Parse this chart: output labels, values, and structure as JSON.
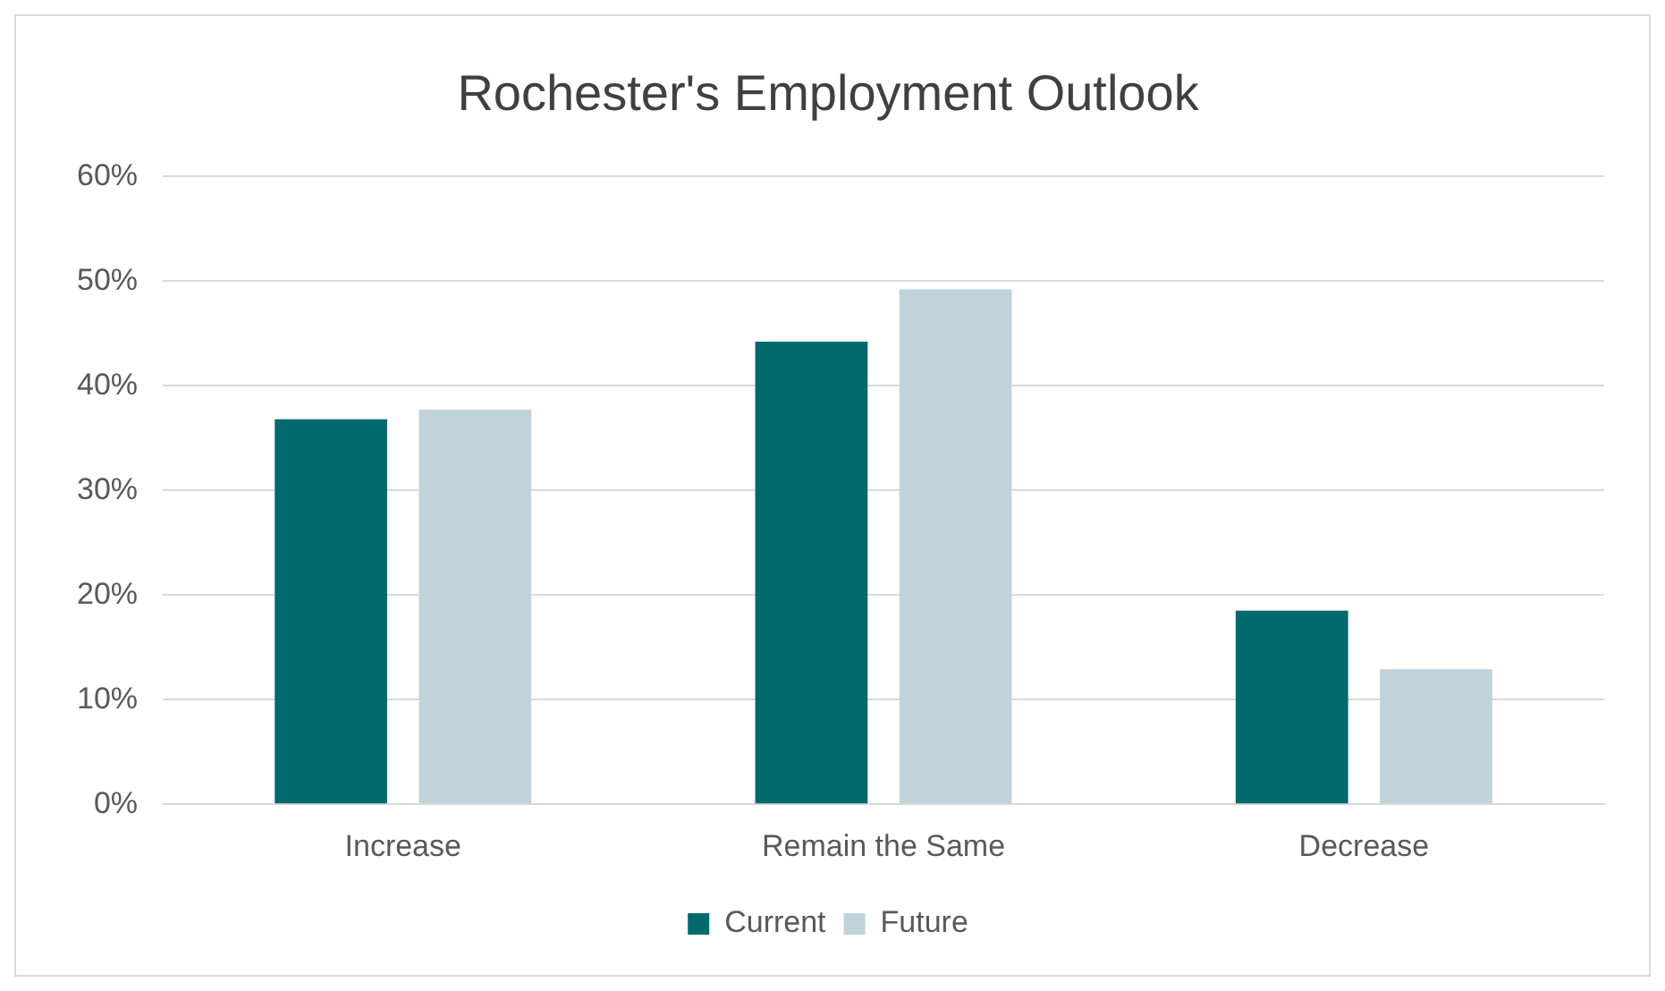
{
  "chart_data": {
    "type": "bar",
    "title": "Rochester's Employment Outlook",
    "categories": [
      "Increase",
      "Remain the Same",
      "Decrease"
    ],
    "series": [
      {
        "name": "Current",
        "color": "#006a6e",
        "values": [
          36.8,
          44.2,
          18.5
        ]
      },
      {
        "name": "Future",
        "color": "#c0d3da",
        "values": [
          37.7,
          49.2,
          12.9
        ]
      }
    ],
    "ylim": [
      0,
      60
    ],
    "yticks": [
      {
        "value": 0,
        "label": "0%"
      },
      {
        "value": 10,
        "label": "10%"
      },
      {
        "value": 20,
        "label": "20%"
      },
      {
        "value": 30,
        "label": "30%"
      },
      {
        "value": 40,
        "label": "40%"
      },
      {
        "value": 50,
        "label": "50%"
      },
      {
        "value": 60,
        "label": "60%"
      }
    ],
    "grid": "y",
    "legend": "bottom"
  }
}
